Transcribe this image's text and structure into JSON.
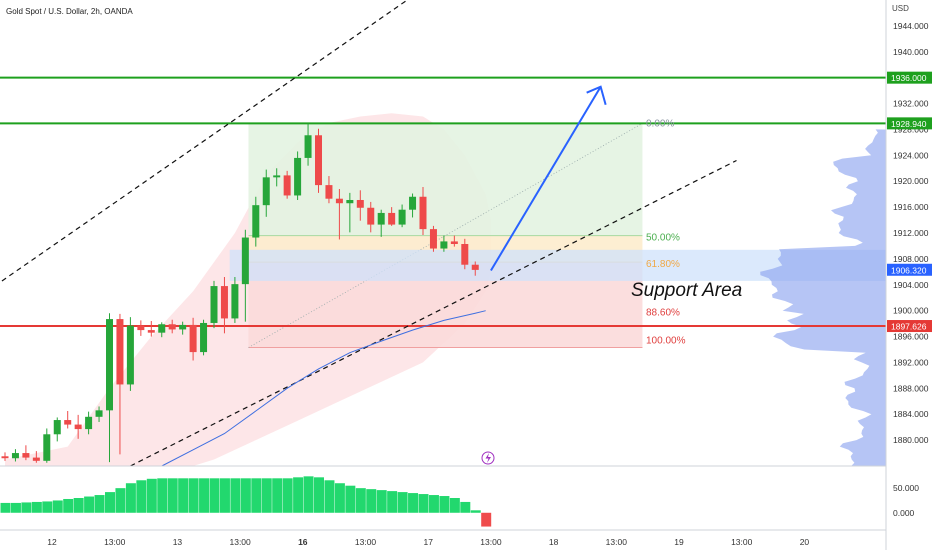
{
  "header": {
    "symbol_title": "Gold Spot / U.S. Dollar, 2h, OANDA",
    "currency": "USD"
  },
  "colors": {
    "bull": "#26a63a",
    "bear": "#ee4a4a",
    "green_line": "#1ea01e",
    "red_line": "#e53935",
    "fib_green": "#e3f3e1",
    "fib_red": "#fbdada",
    "support_blue": "#cfe2fb",
    "arrow": "#2962ff",
    "ema": "#3f6fe0",
    "profile": "#8fa6ef",
    "hist_green": "#22d86e",
    "hist_red": "#ef4c4c"
  },
  "chart_data": {
    "type": "candlestick",
    "instrument": "Gold Spot / U.S. Dollar",
    "timeframe": "2h",
    "source": "OANDA",
    "price_axis": {
      "ylim": [
        1876,
        1948
      ],
      "ticks": [
        1880,
        1884,
        1888,
        1892,
        1896,
        1900,
        1904,
        1908,
        1912,
        1916,
        1920,
        1924,
        1928,
        1932,
        1936,
        1940,
        1944
      ],
      "tick_labels": [
        "1880.000",
        "1884.000",
        "1888.000",
        "1892.000",
        "1896.000",
        "1900.000",
        "1904.000",
        "1908.000",
        "1912.000",
        "1916.000",
        "1920.000",
        "1924.000",
        "1928.000",
        "1932.000",
        "1936.000",
        "1940.000",
        "1944.000"
      ]
    },
    "time_axis": {
      "tick_labels": [
        "12",
        "13:00",
        "13",
        "13:00",
        "16",
        "13:00",
        "17",
        "13:00",
        "18",
        "13:00",
        "19",
        "13:00",
        "20"
      ],
      "tick_index": [
        4.5,
        10.5,
        16.5,
        22.5,
        28.5,
        34.5,
        40.5,
        46.5,
        52.5,
        58.5,
        64.5,
        70.5,
        76.5
      ],
      "bold_labels": [
        "16"
      ]
    },
    "candles": [
      {
        "i": 0,
        "o": 1877.5,
        "h": 1878.1,
        "l": 1876.8,
        "c": 1877.2
      },
      {
        "i": 1,
        "o": 1877.2,
        "h": 1878.6,
        "l": 1876.7,
        "c": 1878.0
      },
      {
        "i": 2,
        "o": 1878.0,
        "h": 1879.2,
        "l": 1876.9,
        "c": 1877.3
      },
      {
        "i": 3,
        "o": 1877.3,
        "h": 1878.3,
        "l": 1876.5,
        "c": 1876.8
      },
      {
        "i": 4,
        "o": 1876.8,
        "h": 1881.8,
        "l": 1876.5,
        "c": 1880.9
      },
      {
        "i": 5,
        "o": 1880.9,
        "h": 1883.5,
        "l": 1879.8,
        "c": 1883.1
      },
      {
        "i": 6,
        "o": 1883.1,
        "h": 1884.5,
        "l": 1881.8,
        "c": 1882.4
      },
      {
        "i": 7,
        "o": 1882.4,
        "h": 1883.9,
        "l": 1880.2,
        "c": 1881.7
      },
      {
        "i": 8,
        "o": 1881.7,
        "h": 1884.4,
        "l": 1880.9,
        "c": 1883.6
      },
      {
        "i": 9,
        "o": 1883.6,
        "h": 1885.2,
        "l": 1882.8,
        "c": 1884.6
      },
      {
        "i": 10,
        "o": 1884.6,
        "h": 1899.6,
        "l": 1876.6,
        "c": 1898.7
      },
      {
        "i": 11,
        "o": 1898.7,
        "h": 1899.5,
        "l": 1877.8,
        "c": 1888.6
      },
      {
        "i": 12,
        "o": 1888.6,
        "h": 1899.0,
        "l": 1887.6,
        "c": 1897.7
      },
      {
        "i": 13,
        "o": 1897.7,
        "h": 1898.5,
        "l": 1896.1,
        "c": 1897.0
      },
      {
        "i": 14,
        "o": 1897.0,
        "h": 1898.4,
        "l": 1896.0,
        "c": 1896.6
      },
      {
        "i": 15,
        "o": 1896.6,
        "h": 1898.2,
        "l": 1895.9,
        "c": 1897.9
      },
      {
        "i": 16,
        "o": 1897.9,
        "h": 1898.6,
        "l": 1896.5,
        "c": 1897.1
      },
      {
        "i": 17,
        "o": 1897.1,
        "h": 1898.3,
        "l": 1896.3,
        "c": 1897.8
      },
      {
        "i": 18,
        "o": 1897.8,
        "h": 1898.9,
        "l": 1892.3,
        "c": 1893.6
      },
      {
        "i": 19,
        "o": 1893.6,
        "h": 1898.6,
        "l": 1893.1,
        "c": 1898.1
      },
      {
        "i": 20,
        "o": 1898.1,
        "h": 1904.6,
        "l": 1897.3,
        "c": 1903.8
      },
      {
        "i": 21,
        "o": 1903.8,
        "h": 1905.2,
        "l": 1896.5,
        "c": 1898.8
      },
      {
        "i": 22,
        "o": 1898.8,
        "h": 1905.2,
        "l": 1898.1,
        "c": 1904.1
      },
      {
        "i": 23,
        "o": 1904.1,
        "h": 1912.5,
        "l": 1898.3,
        "c": 1911.3
      },
      {
        "i": 24,
        "o": 1911.3,
        "h": 1917.6,
        "l": 1909.9,
        "c": 1916.3
      },
      {
        "i": 25,
        "o": 1916.3,
        "h": 1921.8,
        "l": 1914.5,
        "c": 1920.6
      },
      {
        "i": 26,
        "o": 1920.6,
        "h": 1922.0,
        "l": 1919.2,
        "c": 1920.9
      },
      {
        "i": 27,
        "o": 1920.9,
        "h": 1921.6,
        "l": 1917.3,
        "c": 1917.8
      },
      {
        "i": 28,
        "o": 1917.8,
        "h": 1924.6,
        "l": 1917.1,
        "c": 1923.6
      },
      {
        "i": 29,
        "o": 1923.6,
        "h": 1928.9,
        "l": 1922.4,
        "c": 1927.1
      },
      {
        "i": 30,
        "o": 1927.1,
        "h": 1928.1,
        "l": 1918.2,
        "c": 1919.4
      },
      {
        "i": 31,
        "o": 1919.4,
        "h": 1920.8,
        "l": 1916.6,
        "c": 1917.3
      },
      {
        "i": 32,
        "o": 1917.3,
        "h": 1918.8,
        "l": 1911.0,
        "c": 1916.6
      },
      {
        "i": 33,
        "o": 1916.6,
        "h": 1918.2,
        "l": 1912.1,
        "c": 1917.1
      },
      {
        "i": 34,
        "o": 1917.1,
        "h": 1918.6,
        "l": 1913.9,
        "c": 1915.9
      },
      {
        "i": 35,
        "o": 1915.9,
        "h": 1916.8,
        "l": 1912.1,
        "c": 1913.3
      },
      {
        "i": 36,
        "o": 1913.3,
        "h": 1915.6,
        "l": 1911.4,
        "c": 1915.1
      },
      {
        "i": 37,
        "o": 1915.1,
        "h": 1916.0,
        "l": 1913.1,
        "c": 1913.3
      },
      {
        "i": 38,
        "o": 1913.3,
        "h": 1916.4,
        "l": 1912.9,
        "c": 1915.6
      },
      {
        "i": 39,
        "o": 1915.6,
        "h": 1918.1,
        "l": 1914.4,
        "c": 1917.6
      },
      {
        "i": 40,
        "o": 1917.6,
        "h": 1919.1,
        "l": 1911.7,
        "c": 1912.6
      },
      {
        "i": 41,
        "o": 1912.6,
        "h": 1913.1,
        "l": 1909.1,
        "c": 1909.6
      },
      {
        "i": 42,
        "o": 1909.6,
        "h": 1911.6,
        "l": 1909.1,
        "c": 1910.7
      },
      {
        "i": 43,
        "o": 1910.7,
        "h": 1911.6,
        "l": 1909.9,
        "c": 1910.3
      },
      {
        "i": 44,
        "o": 1910.3,
        "h": 1911.1,
        "l": 1906.4,
        "c": 1907.1
      },
      {
        "i": 45,
        "o": 1907.1,
        "h": 1907.6,
        "l": 1905.4,
        "c": 1906.3
      }
    ],
    "ema_line": [
      {
        "i": 15,
        "v": 1876.0
      },
      {
        "i": 18,
        "v": 1878.5
      },
      {
        "i": 21,
        "v": 1881.0
      },
      {
        "i": 24,
        "v": 1884.5
      },
      {
        "i": 27,
        "v": 1888.0
      },
      {
        "i": 30,
        "v": 1891.0
      },
      {
        "i": 33,
        "v": 1893.5
      },
      {
        "i": 36,
        "v": 1895.3
      },
      {
        "i": 39,
        "v": 1897.0
      },
      {
        "i": 42,
        "v": 1898.5
      },
      {
        "i": 45,
        "v": 1899.6
      },
      {
        "i": 46,
        "v": 1900.0
      }
    ],
    "horizontal_levels": [
      {
        "name": "1936.000",
        "price": 1936.0,
        "color": "green"
      },
      {
        "name": "1928.940",
        "price": 1928.94,
        "color": "green"
      },
      {
        "name": "1897.626",
        "price": 1897.626,
        "color": "red"
      }
    ],
    "current_price": {
      "label": "1906.320",
      "price": 1906.32
    },
    "fibonacci": [
      {
        "label": "0.00%",
        "price": 1928.94
      },
      {
        "label": "50.00%",
        "price": 1911.6
      },
      {
        "label": "61.80%",
        "price": 1907.5
      },
      {
        "label": "88.60%",
        "price": 1898.2
      },
      {
        "label": "100.00%",
        "price": 1894.3
      }
    ],
    "support_zone": {
      "label": "Support Area",
      "top": 1909.4,
      "bottom": 1904.6
    },
    "channel_upper": [
      {
        "i": -1,
        "p": 1903.8
      },
      {
        "i": 51,
        "p": 1962.0
      }
    ],
    "channel_lower": [
      {
        "i": 12,
        "p": 1876.0
      },
      {
        "i": 70,
        "p": 1923.2
      }
    ],
    "target_arrow": {
      "from": {
        "i": 46.5,
        "p": 1906.2
      },
      "to": {
        "i": 57,
        "p": 1934.6
      }
    },
    "oscillator": {
      "ticks": [
        0,
        50
      ],
      "tick_labels": [
        "0.000",
        "50.000"
      ],
      "ylim": [
        -35,
        95
      ],
      "values": [
        20,
        20,
        21,
        22,
        23,
        25,
        28,
        30,
        33,
        36,
        42,
        50,
        60,
        66,
        69,
        70,
        70,
        70,
        70,
        70,
        70,
        70,
        70,
        70,
        70,
        70,
        70,
        70,
        72,
        74,
        72,
        66,
        60,
        55,
        50,
        48,
        46,
        44,
        42,
        40,
        38,
        36,
        34,
        30,
        22,
        5,
        -28
      ]
    }
  }
}
